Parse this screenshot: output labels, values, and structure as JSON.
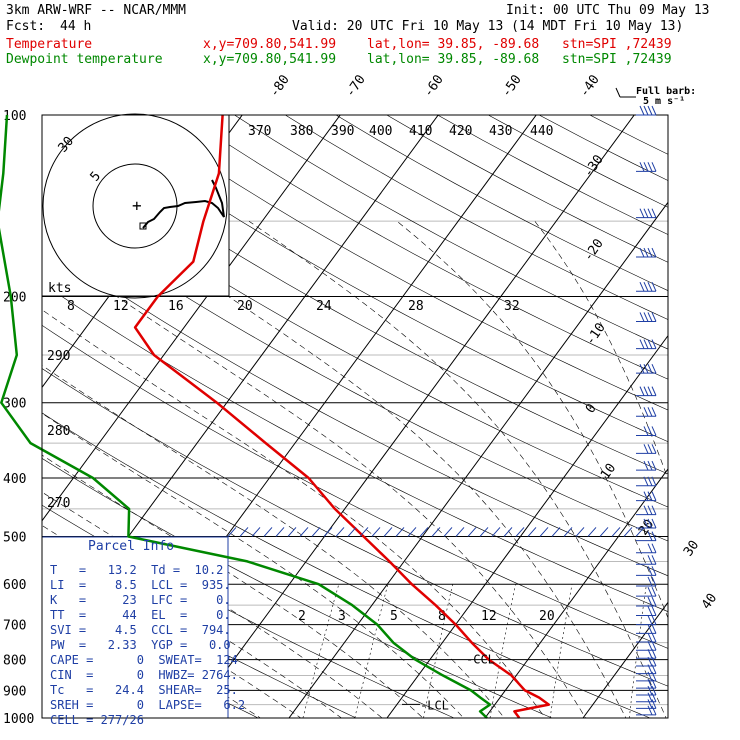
{
  "header": {
    "model": "3km ARW-WRF -- NCAR/MMM",
    "init": "Init: 00 UTC Thu 09 May 13",
    "fcst_label": "Fcst:",
    "fcst_value": "44 h",
    "valid": "Valid: 20 UTC Fri 10 May 13 (14 MDT Fri 10 May 13)"
  },
  "legend": {
    "temperature": {
      "label": "Temperature",
      "xy": "x,y=709.80,541.99",
      "latlon": "lat,lon= 39.85, -89.68",
      "stn": "stn=SPI ,72439",
      "color": "#e00000"
    },
    "dewpoint": {
      "label": "Dewpoint temperature",
      "xy": "x,y=709.80,541.99",
      "latlon": "lat,lon= 39.85, -89.68",
      "stn": "stn=SPI ,72439",
      "color": "#008800"
    }
  },
  "barb_legend": {
    "title": "Full barb:",
    "unit": "5 m s⁻¹"
  },
  "hodograph": {
    "rings": [
      "5",
      "30"
    ],
    "units": "kts"
  },
  "parcel_info": {
    "title": "Parcel Info",
    "rows": [
      "T   =   13.2  Td =  10.2",
      "LI  =    8.5  LCL =  935.",
      "K   =     23  LFC =    0.",
      "TT  =     44  EL  =    0.",
      "SVI =    4.5  CCL =  794.",
      "PW  =   2.33  YGP =   0.0",
      "CAPE =      0  SWEAT=  124",
      "CIN  =      0  HWBZ= 2764.",
      "Tc   =   24.4  SHEAR=  25.",
      "SREH =      0  LAPSE=   6.2",
      "CELL = 277/26"
    ]
  },
  "chart_data": {
    "type": "skew-t",
    "y_axis": {
      "label_values": [
        100,
        200,
        300,
        400,
        500,
        600,
        700,
        800,
        900,
        1000
      ],
      "range_hpa": [
        100,
        1000
      ],
      "scale": "log"
    },
    "isotherm_labels": [
      -80,
      -70,
      -60,
      -50,
      -40,
      -30,
      -20,
      -10,
      0,
      10,
      20,
      30,
      40
    ],
    "theta_e_labels": [
      370,
      380,
      390,
      400,
      410,
      420,
      430,
      440
    ],
    "theta_labels": [
      290,
      280,
      270
    ],
    "mixing_ratio_upper": [
      8,
      12,
      16,
      20,
      24,
      28,
      32
    ],
    "mixing_ratio_lower": [
      2,
      3,
      5,
      8,
      12,
      20
    ],
    "lcl_label": "LCL",
    "ccl_label": "CCL",
    "series": [
      {
        "name": "Temperature",
        "color": "#e00000",
        "points": [
          {
            "p": 1000,
            "t": 13.5
          },
          {
            "p": 975,
            "t": 12.5
          },
          {
            "p": 950,
            "t": 15.5
          },
          {
            "p": 925,
            "t": 14.0
          },
          {
            "p": 900,
            "t": 12.0
          },
          {
            "p": 850,
            "t": 9.5
          },
          {
            "p": 800,
            "t": 6.0
          },
          {
            "p": 750,
            "t": 3.0
          },
          {
            "p": 700,
            "t": 0.0
          },
          {
            "p": 650,
            "t": -3.5
          },
          {
            "p": 600,
            "t": -7.5
          },
          {
            "p": 550,
            "t": -11.5
          },
          {
            "p": 500,
            "t": -16.0
          },
          {
            "p": 450,
            "t": -21.0
          },
          {
            "p": 400,
            "t": -26.0
          },
          {
            "p": 350,
            "t": -33.0
          },
          {
            "p": 300,
            "t": -41.0
          },
          {
            "p": 250,
            "t": -51.0
          },
          {
            "p": 225,
            "t": -55.0
          },
          {
            "p": 200,
            "t": -55.0
          },
          {
            "p": 175,
            "t": -54.0
          },
          {
            "p": 150,
            "t": -56.0
          },
          {
            "p": 125,
            "t": -58.0
          },
          {
            "p": 100,
            "t": -62.0
          }
        ]
      },
      {
        "name": "Dewpoint temperature",
        "color": "#008800",
        "points": [
          {
            "p": 1000,
            "t": 10.2
          },
          {
            "p": 975,
            "t": 9.0
          },
          {
            "p": 950,
            "t": 9.5
          },
          {
            "p": 925,
            "t": 8.0
          },
          {
            "p": 900,
            "t": 6.5
          },
          {
            "p": 850,
            "t": 2.5
          },
          {
            "p": 800,
            "t": -1.5
          },
          {
            "p": 750,
            "t": -5.0
          },
          {
            "p": 700,
            "t": -8.0
          },
          {
            "p": 650,
            "t": -12.0
          },
          {
            "p": 600,
            "t": -17.0
          },
          {
            "p": 550,
            "t": -26.0
          },
          {
            "p": 500,
            "t": -40.0
          },
          {
            "p": 450,
            "t": -42.0
          },
          {
            "p": 400,
            "t": -48.0
          },
          {
            "p": 350,
            "t": -57.0
          },
          {
            "p": 300,
            "t": -63.0
          },
          {
            "p": 250,
            "t": -65.0
          },
          {
            "p": 200,
            "t": -70.0
          },
          {
            "p": 150,
            "t": -77.0
          },
          {
            "p": 125,
            "t": -80.0
          },
          {
            "p": 100,
            "t": -84.0
          }
        ]
      }
    ]
  }
}
